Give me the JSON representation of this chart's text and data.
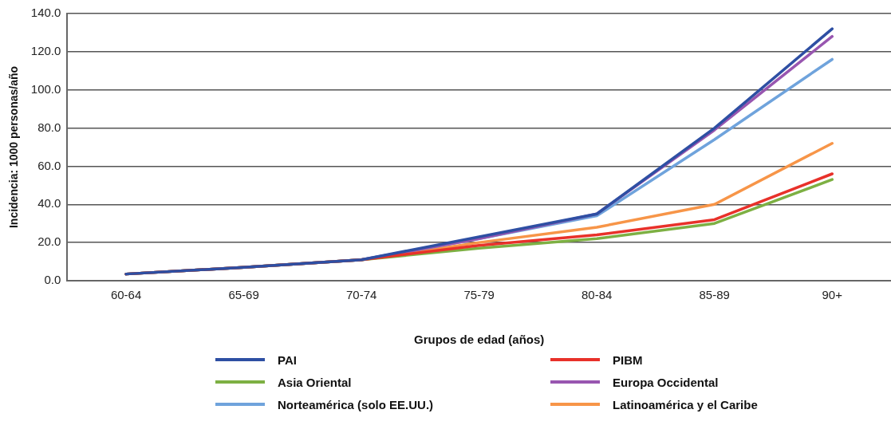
{
  "chart_data": {
    "type": "line",
    "xlabel": "Grupos de edad (años)",
    "ylabel": "Incidencia: 1000 personas/año",
    "categories": [
      "60-64",
      "65-69",
      "70-74",
      "75-79",
      "80-84",
      "85-89",
      "90+"
    ],
    "ylim": [
      0,
      140
    ],
    "yticks": [
      {
        "value": 0,
        "label": "0.0"
      },
      {
        "value": 20,
        "label": "20.0"
      },
      {
        "value": 40,
        "label": "40.0"
      },
      {
        "value": 60,
        "label": "60.0"
      },
      {
        "value": 80,
        "label": "80.0"
      },
      {
        "value": 100,
        "label": "100.0"
      },
      {
        "value": 120,
        "label": "120.0"
      },
      {
        "value": 140,
        "label": "140.0"
      }
    ],
    "grid": "y",
    "legend": "bottom",
    "marker": "none",
    "line_style": "solid",
    "series": [
      {
        "name": "PAI",
        "color": "#2e4fa3",
        "values": [
          3.5,
          7,
          11,
          23,
          35,
          80,
          132
        ]
      },
      {
        "name": "PIBM",
        "color": "#e8312a",
        "values": [
          3.5,
          7,
          11,
          18.5,
          24,
          32,
          56
        ]
      },
      {
        "name": "Asia Oriental",
        "color": "#7db043",
        "values": [
          3.5,
          7,
          11,
          17,
          22,
          30,
          53
        ]
      },
      {
        "name": "Europa Occidental",
        "color": "#9856b0",
        "values": [
          3.5,
          7,
          11,
          22,
          35,
          79,
          128
        ]
      },
      {
        "name": "Norteamérica (solo EE.UU.)",
        "color": "#6fa3dc",
        "values": [
          3.5,
          7,
          11,
          22,
          34,
          74,
          116
        ]
      },
      {
        "name": "Latinoamérica y el Caribe",
        "color": "#f79548",
        "values": [
          3.5,
          7,
          11,
          20,
          28,
          40,
          72
        ]
      }
    ]
  }
}
